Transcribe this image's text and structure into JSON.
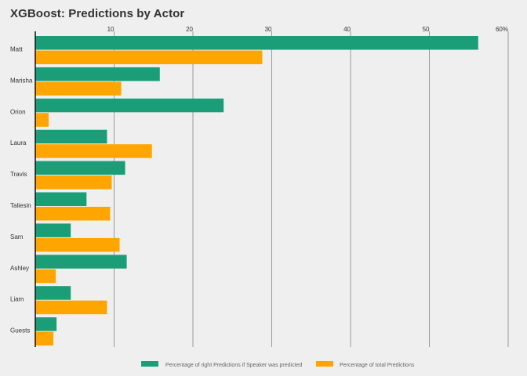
{
  "chart_data": {
    "type": "bar",
    "orientation": "horizontal",
    "title": "XGBoost: Predictions by Actor",
    "categories": [
      "Matt",
      "Marisha",
      "Orion",
      "Laura",
      "Travis",
      "Taliesin",
      "Sam",
      "Ashley",
      "Liam",
      "Guests"
    ],
    "series": [
      {
        "name": "Percentage of right Predictions if Speaker was predicted",
        "color": "#1b9e77",
        "values": [
          56.2,
          15.8,
          23.9,
          9.1,
          11.4,
          6.5,
          4.5,
          11.6,
          4.5,
          2.7
        ]
      },
      {
        "name": "Percentage of total Predictions",
        "color": "#ffa500",
        "values": [
          28.8,
          10.9,
          1.7,
          14.8,
          9.7,
          9.5,
          10.7,
          2.6,
          9.1,
          2.3
        ]
      }
    ],
    "xlim": [
      0,
      60
    ],
    "x_ticks": [
      {
        "value": 10,
        "label": "10"
      },
      {
        "value": 20,
        "label": "20"
      },
      {
        "value": 30,
        "label": "30"
      },
      {
        "value": 40,
        "label": "40"
      },
      {
        "value": 50,
        "label": "50"
      },
      {
        "value": 60,
        "label": "60%"
      }
    ],
    "grid": true,
    "legend_position": "bottom"
  }
}
